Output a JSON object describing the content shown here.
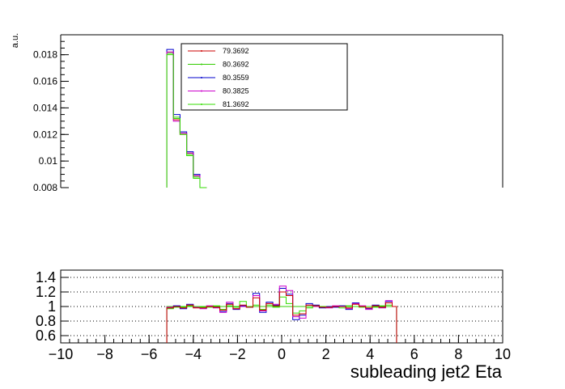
{
  "chart_data": [
    {
      "type": "line",
      "panel": "top",
      "xlabel": "",
      "ylabel": "a.u.",
      "ylim": [
        0.008,
        0.0195
      ],
      "y_ticks": [
        "0.008",
        "0.01",
        "0.012",
        "0.014",
        "0.016",
        "0.018"
      ],
      "legend": {
        "placement": "top-left",
        "entries": [
          "79.3692",
          "80.3692",
          "80.3559",
          "80.3825",
          "81.3692"
        ]
      },
      "x_bin_edges": [
        -5.2,
        -4.9,
        -4.6,
        -4.3,
        -4.0,
        -3.7,
        -3.4
      ],
      "series": [
        {
          "name": "79.3692",
          "color": "#cc0000",
          "values": [
            0.0182,
            0.0131,
            0.012,
            0.0106,
            0.0089,
            0.0078
          ]
        },
        {
          "name": "80.3692",
          "color": "#33cc00",
          "values": [
            0.0181,
            0.0133,
            0.0121,
            0.0105,
            0.0088,
            0.0078
          ]
        },
        {
          "name": "80.3559",
          "color": "#0000cc",
          "values": [
            0.0184,
            0.0135,
            0.0122,
            0.0107,
            0.009,
            0.0079
          ]
        },
        {
          "name": "80.3825",
          "color": "#cc00cc",
          "values": [
            0.0182,
            0.013,
            0.0121,
            0.0106,
            0.0089,
            0.0078
          ]
        },
        {
          "name": "81.3692",
          "color": "#33dd00",
          "values": [
            0.018,
            0.0132,
            0.012,
            0.0104,
            0.0087,
            0.0077
          ]
        }
      ]
    },
    {
      "type": "line",
      "panel": "ratio",
      "xlabel": "subleading jet2 Eta",
      "ylabel": "",
      "xlim": [
        -10,
        10
      ],
      "ylim": [
        0.5,
        1.5
      ],
      "x_ticks": [
        "−10",
        "−8",
        "−6",
        "−4",
        "−2",
        "0",
        "2",
        "4",
        "6",
        "8",
        "10"
      ],
      "y_ticks": [
        "0.6",
        "0.8",
        "1",
        "1.2",
        "1.4"
      ],
      "grid": true,
      "x_bin_edges": [
        -5.2,
        -4.9,
        -4.6,
        -4.3,
        -4.0,
        -3.7,
        -3.4,
        -3.1,
        -2.8,
        -2.5,
        -2.2,
        -1.9,
        -1.6,
        -1.3,
        -1.0,
        -0.7,
        -0.4,
        -0.1,
        0.2,
        0.5,
        0.8,
        1.1,
        1.4,
        1.7,
        2.0,
        2.3,
        2.6,
        2.9,
        3.2,
        3.5,
        3.8,
        4.1,
        4.4,
        4.7,
        5.0,
        5.2
      ],
      "series": [
        {
          "name": "80.3692",
          "color": "#33cc00",
          "values": [
            1.0,
            1.0,
            1.0,
            1.0,
            1.0,
            1.0,
            1.0,
            1.0,
            1.0,
            1.0,
            1.0,
            1.0,
            1.0,
            1.0,
            1.0,
            1.0,
            1.0,
            1.0,
            1.0,
            1.0,
            1.0,
            1.0,
            1.0,
            1.0,
            1.0,
            1.0,
            1.0,
            1.0,
            1.0,
            1.0,
            1.0,
            1.0,
            1.0,
            1.0,
            1.0
          ]
        },
        {
          "name": "80.3559",
          "color": "#0000cc",
          "values": [
            0.98,
            1.01,
            0.97,
            1.03,
            0.99,
            0.98,
            1.0,
            0.99,
            0.93,
            1.04,
            0.96,
            1.01,
            0.99,
            1.18,
            0.92,
            1.06,
            1.02,
            1.25,
            1.17,
            0.82,
            0.88,
            1.04,
            1.02,
            0.98,
            1.0,
            0.99,
            1.01,
            0.96,
            1.05,
            1.0,
            0.97,
            1.02,
            0.99,
            1.07,
            1.0
          ]
        },
        {
          "name": "80.3825",
          "color": "#cc00cc",
          "values": [
            0.99,
            1.0,
            0.98,
            1.02,
            0.99,
            0.97,
            1.01,
            0.98,
            0.92,
            1.06,
            0.97,
            1.0,
            1.0,
            1.15,
            0.94,
            1.04,
            1.03,
            1.28,
            1.22,
            0.86,
            0.84,
            1.02,
            1.0,
            0.99,
            0.98,
            1.01,
            1.0,
            0.97,
            1.04,
            1.01,
            0.96,
            1.01,
            0.98,
            1.08,
            1.0
          ]
        },
        {
          "name": "81.3692",
          "color": "#33dd00",
          "values": [
            0.97,
            0.99,
            0.99,
            1.01,
            1.0,
            0.99,
            0.99,
            1.01,
            0.96,
            1.01,
            0.99,
            1.07,
            1.0,
            1.02,
            0.96,
            1.02,
            0.99,
            1.13,
            1.04,
            0.91,
            0.94,
            0.98,
            1.01,
            1.0,
            0.99,
            1.0,
            0.98,
            1.01,
            1.0,
            0.99,
            1.0,
            0.99,
            1.01,
            1.02,
            1.0
          ]
        },
        {
          "name": "79.3692",
          "color": "#cc0000",
          "values": [
            0.98,
            1.0,
            0.98,
            1.02,
            0.98,
            0.98,
            1.0,
            0.99,
            0.95,
            1.03,
            0.97,
            1.02,
            0.99,
            1.12,
            0.95,
            1.04,
            1.01,
            1.2,
            1.15,
            0.88,
            0.9,
            1.02,
            1.01,
            0.99,
            0.99,
            1.0,
            1.0,
            0.98,
            1.03,
            1.0,
            0.98,
            1.01,
            0.99,
            1.05,
            1.0
          ]
        }
      ]
    }
  ]
}
